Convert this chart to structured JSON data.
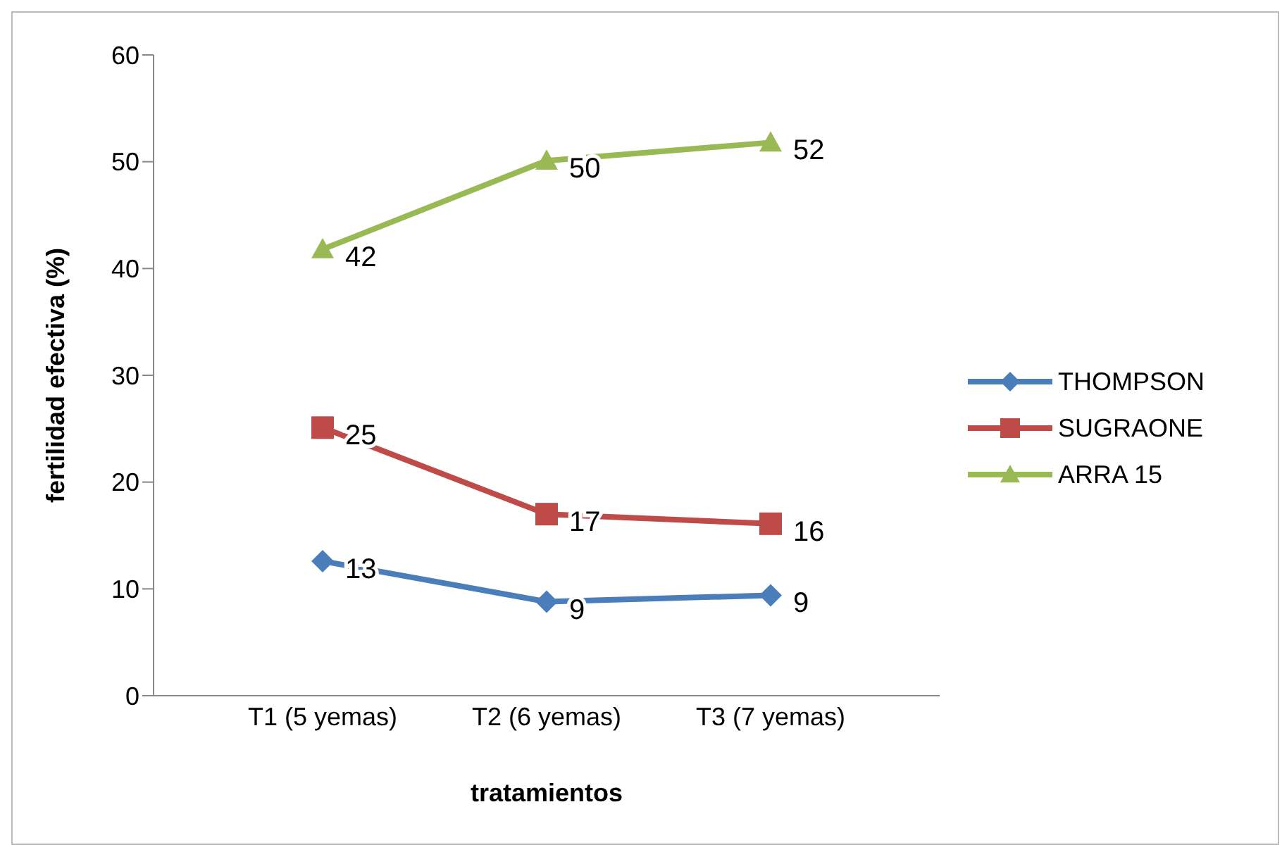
{
  "chart_data": {
    "type": "line",
    "xlabel": "tratamientos",
    "ylabel": "fertilidad efectiva (%)",
    "categories": [
      "T1 (5 yemas)",
      "T2 (6 yemas)",
      "T3 (7 yemas)"
    ],
    "series": [
      {
        "name": "THOMPSON",
        "color": "#4a7ebb",
        "marker": "diamond",
        "values": [
          12.6,
          8.8,
          9.4
        ],
        "value_labels": [
          "13",
          "9",
          "9"
        ]
      },
      {
        "name": "SUGRAONE",
        "color": "#be4b48",
        "marker": "square",
        "values": [
          25.1,
          17,
          16.1
        ],
        "value_labels": [
          "25",
          "17",
          "16"
        ]
      },
      {
        "name": "ARRA 15",
        "color": "#98b954",
        "marker": "triangle",
        "values": [
          41.8,
          50.1,
          51.8
        ],
        "value_labels": [
          "42",
          "50",
          "52"
        ]
      }
    ],
    "ylim": [
      0,
      60
    ],
    "yticks": [
      0,
      10,
      20,
      30,
      40,
      50,
      60
    ],
    "grid": false,
    "legend": "right"
  }
}
